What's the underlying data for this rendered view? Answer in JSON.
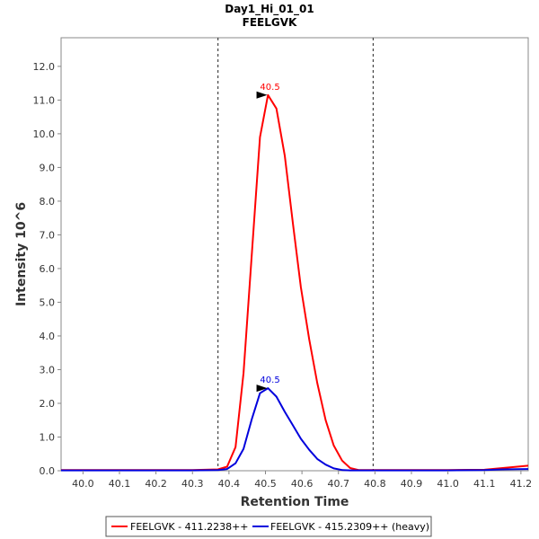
{
  "chart_data": {
    "type": "line",
    "title": "Day1_Hi_01_01",
    "subtitle": "FEELGVK",
    "xlabel": "Retention Time",
    "ylabel": "Intensity 10^6",
    "xlim": [
      39.94,
      41.22
    ],
    "ylim": [
      0,
      12.85
    ],
    "x_ticks": [
      "40.0",
      "40.1",
      "40.2",
      "40.3",
      "40.4",
      "40.5",
      "40.6",
      "40.7",
      "40.8",
      "40.9",
      "41.0",
      "41.1",
      "41.2"
    ],
    "x_tick_values": [
      40.0,
      40.1,
      40.2,
      40.3,
      40.4,
      40.5,
      40.6,
      40.7,
      40.8,
      40.9,
      41.0,
      41.1,
      41.2
    ],
    "y_ticks": [
      "0.0",
      "1.0",
      "2.0",
      "3.0",
      "4.0",
      "5.0",
      "6.0",
      "7.0",
      "8.0",
      "9.0",
      "10.0",
      "11.0",
      "12.0"
    ],
    "y_tick_values": [
      0,
      1,
      2,
      3,
      4,
      5,
      6,
      7,
      8,
      9,
      10,
      11,
      12
    ],
    "integration_bounds": [
      40.37,
      40.795
    ],
    "series": [
      {
        "name": "FEELGVK - 411.2238++",
        "color": "#ff0000",
        "x": [
          39.94,
          40.0,
          40.1,
          40.2,
          40.3,
          40.37,
          40.395,
          40.418,
          40.44,
          40.463,
          40.485,
          40.507,
          40.53,
          40.553,
          40.575,
          40.597,
          40.62,
          40.642,
          40.665,
          40.687,
          40.71,
          40.732,
          40.755,
          40.777,
          40.8,
          40.9,
          41.0,
          41.1,
          41.15,
          41.22
        ],
        "y": [
          0.02,
          0.02,
          0.02,
          0.02,
          0.02,
          0.04,
          0.12,
          0.7,
          2.9,
          6.5,
          9.9,
          11.15,
          10.75,
          9.35,
          7.35,
          5.45,
          3.9,
          2.6,
          1.5,
          0.75,
          0.3,
          0.08,
          0.02,
          0.02,
          0.02,
          0.02,
          0.02,
          0.03,
          0.08,
          0.15
        ]
      },
      {
        "name": "FEELGVK - 415.2309++ (heavy)",
        "color": "#0000dd",
        "x": [
          39.94,
          40.0,
          40.1,
          40.2,
          40.3,
          40.37,
          40.395,
          40.418,
          40.44,
          40.463,
          40.485,
          40.507,
          40.53,
          40.553,
          40.575,
          40.597,
          40.62,
          40.642,
          40.665,
          40.687,
          40.71,
          40.732,
          40.755,
          40.777,
          40.8,
          40.9,
          41.0,
          41.1,
          41.15,
          41.22
        ],
        "y": [
          0.01,
          0.01,
          0.01,
          0.01,
          0.01,
          0.02,
          0.05,
          0.22,
          0.65,
          1.55,
          2.3,
          2.45,
          2.2,
          1.75,
          1.35,
          0.95,
          0.62,
          0.35,
          0.18,
          0.07,
          0.02,
          0.01,
          0.01,
          0.01,
          0.01,
          0.01,
          0.01,
          0.02,
          0.04,
          0.05
        ]
      }
    ],
    "peak_labels": [
      {
        "text": "40.5",
        "x": 40.51,
        "y": 11.15,
        "series": 0
      },
      {
        "text": "40.5",
        "x": 40.51,
        "y": 2.45,
        "series": 1
      }
    ],
    "legend_position": "bottom-center"
  }
}
